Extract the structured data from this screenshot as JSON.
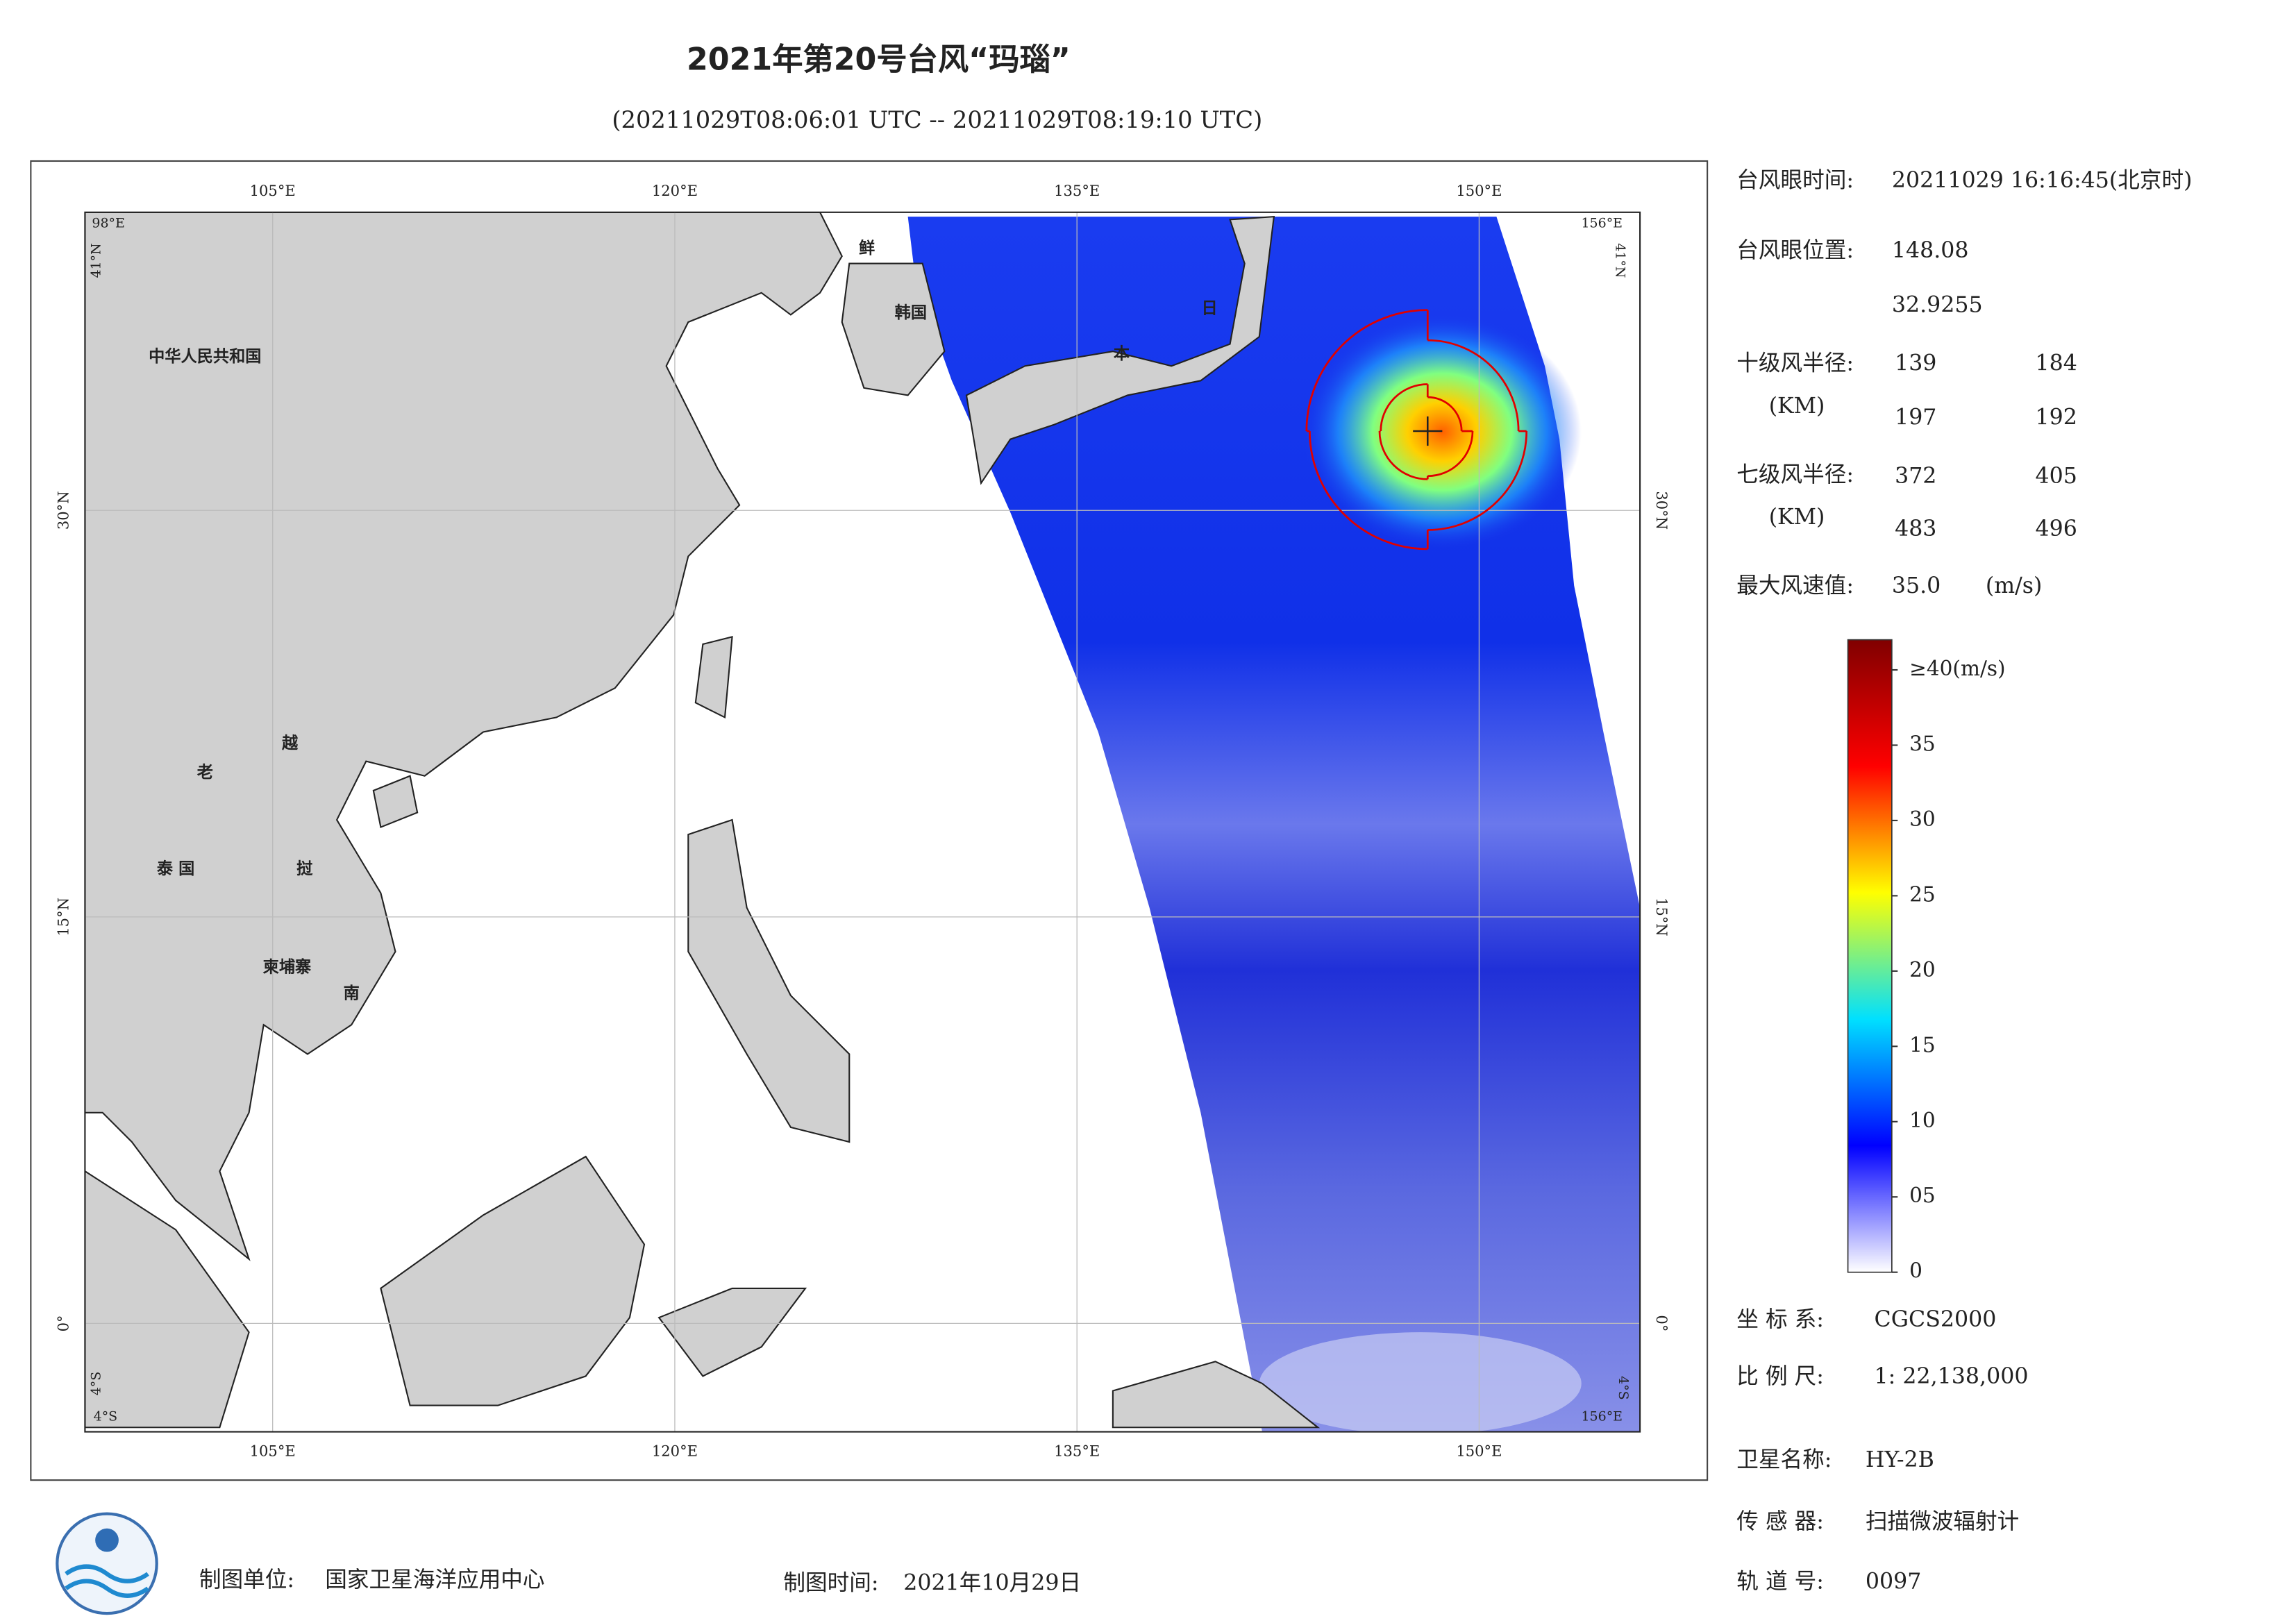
{
  "header": {
    "title": "2021年第20号台风“玛瑙”",
    "subtitle": "(20211029T08:06:01 UTC -- 20211029T08:19:10 UTC)"
  },
  "map": {
    "xlim": [
      98,
      156
    ],
    "ylim": [
      -4,
      41
    ],
    "xticks": [
      {
        "value": 105,
        "label": "105°E"
      },
      {
        "value": 120,
        "label": "120°E"
      },
      {
        "value": 135,
        "label": "135°E"
      },
      {
        "value": 150,
        "label": "150°E"
      }
    ],
    "yticks": [
      {
        "value": 0,
        "label": "0°"
      },
      {
        "value": 15,
        "label": "15°N"
      },
      {
        "value": 30,
        "label": "30°N"
      }
    ],
    "corner_labels": [
      "98°E",
      "41°N",
      "156°E",
      "41°N",
      "4°S",
      "4°S",
      "156°E",
      "4°S"
    ],
    "place_labels": [
      "中华人民共和国",
      "老",
      "越",
      "泰 国",
      "柬埔寨",
      "南",
      "挝",
      "鲜",
      "韩国",
      "日",
      "本"
    ]
  },
  "eye": {
    "time_label": "台风眼时间:",
    "time": "20211029 16:16:45(北京时)",
    "position_label": "台风眼位置:",
    "lon": 148.08,
    "lat": 32.9255
  },
  "r10": {
    "label": "十级风半径:",
    "unit": "(KM)",
    "values": [
      139,
      184,
      197,
      192
    ]
  },
  "r7": {
    "label": "七级风半径:",
    "unit": "(KM)",
    "values": [
      372,
      405,
      483,
      496
    ]
  },
  "max_wind": {
    "label": "最大风速值:",
    "value": 35,
    "value_label": "35.0",
    "unit": "(m/s)"
  },
  "colorbar": {
    "lim": [
      0,
      42
    ],
    "colors": [
      "#ffffff",
      "#0000ff",
      "#00e0ff",
      "#ffff00",
      "#ff0000",
      "#800000"
    ],
    "ticks": [
      0,
      {
        "value": 5,
        "label": "05"
      },
      10,
      15,
      20,
      25,
      30,
      35,
      {
        "value": 40,
        "label": "≥40(m/s)"
      }
    ]
  },
  "info": {
    "coord": {
      "label": "坐 标 系:",
      "value": "CGCS2000"
    },
    "scale": {
      "label": "比 例 尺:",
      "value": "1: 22,138,000"
    },
    "satellite": {
      "label": "卫星名称:",
      "value": "HY-2B"
    },
    "sensor": {
      "label": "传 感 器:",
      "value": "扫描微波辐射计"
    },
    "orbit": {
      "label": "轨 道 号:",
      "value": "0097"
    }
  },
  "footer": {
    "producer": {
      "label": "制图单位:",
      "value": "国家卫星海洋应用中心"
    },
    "date": {
      "label": "制图时间:",
      "value": "2021年10月29日"
    }
  }
}
